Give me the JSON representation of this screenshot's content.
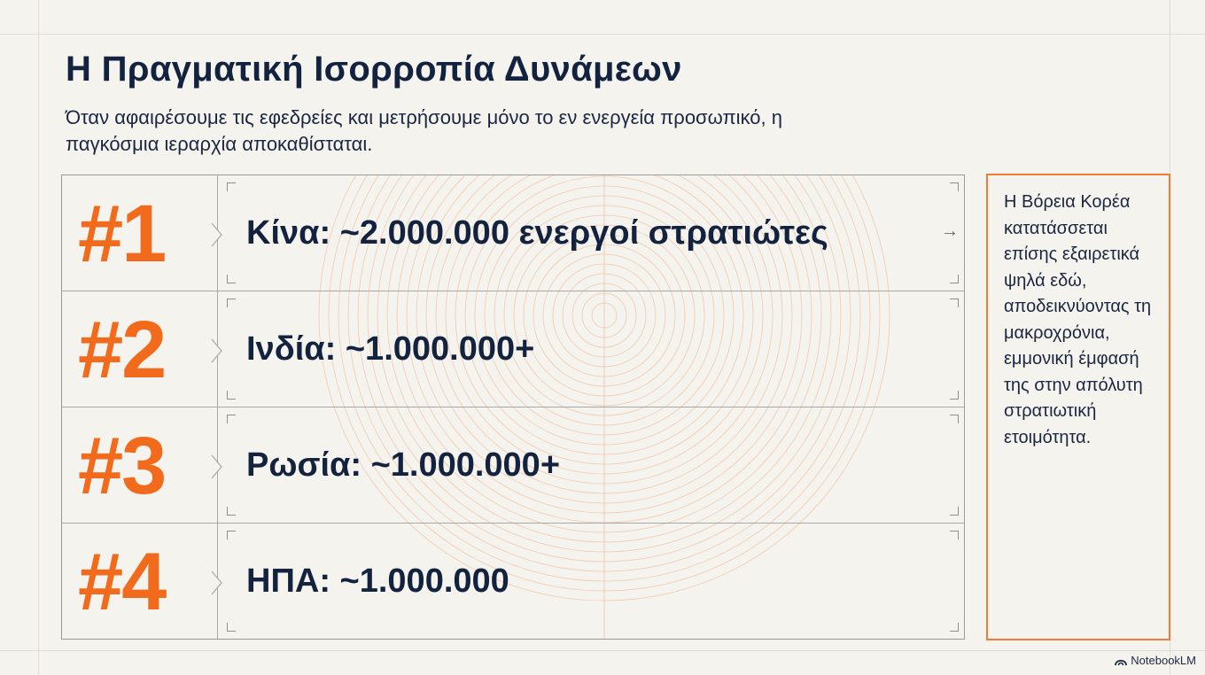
{
  "slide": {
    "title": "Η Πραγματική Ισορροπία Δυνάμεων",
    "subtitle": "Όταν αφαιρέσουμε τις εφεδρείες και μετρήσουμε μόνο το εν ενεργεία προσωπικό, η παγκόσμια ιεραρχία αποκαθίσταται."
  },
  "ranking": [
    {
      "rank": "#1",
      "label": "Κίνα: ~2.000.000 ενεργοί στρατιώτες"
    },
    {
      "rank": "#2",
      "label": "Ινδία: ~1.000.000+"
    },
    {
      "rank": "#3",
      "label": "Ρωσία: ~1.000.000+"
    },
    {
      "rank": "#4",
      "label": "ΗΠΑ: ~1.000.000"
    }
  ],
  "note": {
    "text": "Η Βόρεια Κορέα κατατάσσεται επίσης εξαιρετικά ψηλά εδώ, αποδεικνύοντας τη μακροχρόνια, εμμονική έμφασή της στην απόλυτη στρατιωτική ετοιμότητα."
  },
  "colors": {
    "accent": "#f26a1b",
    "title": "#13233f",
    "background": "#f4f3ee",
    "note_border": "#f07d3a"
  },
  "branding": {
    "label": "NotebookLM",
    "icon": "notebooklm-logo-icon"
  }
}
